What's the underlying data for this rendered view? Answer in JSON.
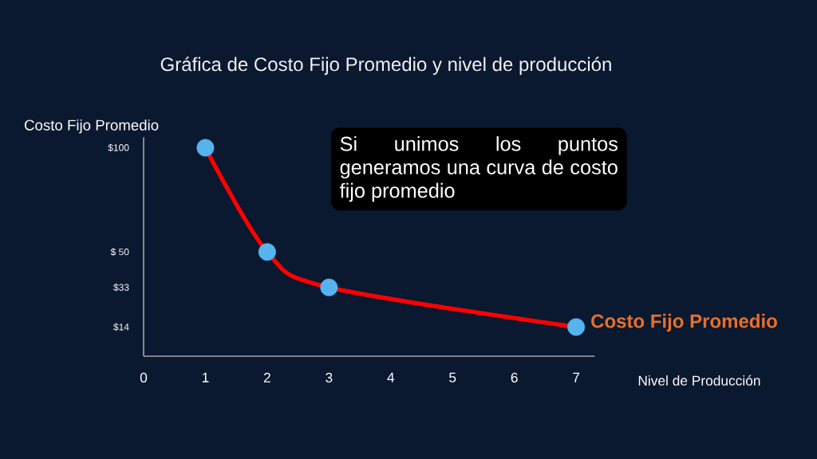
{
  "chart_data": {
    "type": "line",
    "title": "Gráfica de Costo Fijo Promedio y nivel de producción",
    "xlabel": "Nivel de Producción",
    "ylabel": "Costo Fijo Promedio",
    "annotations": [
      "Si unimos los puntos generamos una curva de costo fijo promedio"
    ],
    "x": [
      1,
      2,
      3,
      7
    ],
    "series": [
      {
        "name": "Costo Fijo Promedio",
        "color": "#ff0000",
        "values": [
          100,
          50,
          33,
          14
        ]
      }
    ],
    "marker": "circle",
    "xlim": [
      0,
      7.3
    ],
    "ylim": [
      0,
      105
    ],
    "xticks": [
      0,
      1,
      2,
      3,
      4,
      5,
      6,
      7
    ],
    "yticks": [
      {
        "value": 14,
        "label": "$14"
      },
      {
        "value": 33,
        "label": "$33"
      },
      {
        "value": 50,
        "label": "$ 50"
      },
      {
        "value": 100,
        "label": "$100"
      }
    ]
  }
}
